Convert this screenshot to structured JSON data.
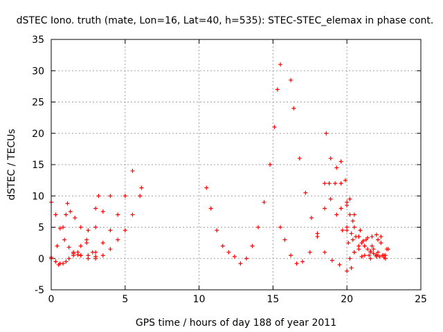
{
  "chart_data": {
    "type": "scatter",
    "title": "dSTEC Iono. truth (mate, Lon=16, Lat=40, h=535): STEC-STEC_elemax in phase cont.",
    "xlabel": "GPS time / hours of day 188 of year 2011",
    "ylabel": "dSTEC  / TECUs",
    "xlim": [
      0,
      25
    ],
    "ylim": [
      -5,
      35
    ],
    "xticks": [
      0,
      5,
      10,
      15,
      20,
      25
    ],
    "yticks": [
      -5,
      0,
      5,
      10,
      15,
      20,
      25,
      30,
      35
    ],
    "grid": true,
    "marker": "+",
    "color": "#ff0000",
    "series": [
      {
        "x": [
          0.0,
          0.3,
          0.6,
          0.9,
          1.2,
          1.5,
          1.8,
          2.0
        ],
        "y": [
          9.0,
          7.0,
          4.8,
          3.0,
          1.8,
          1.0,
          0.6,
          0.5
        ]
      },
      {
        "x": [
          0.0,
          0.4,
          0.8,
          1.0,
          1.1,
          1.3,
          1.6,
          2.0,
          2.4,
          2.8,
          3.0
        ],
        "y": [
          0.2,
          2.0,
          5.0,
          7.0,
          8.8,
          7.5,
          6.5,
          5.0,
          3.0,
          1.0,
          0.3
        ]
      },
      {
        "x": [
          0.0,
          0.3,
          0.6,
          1.0,
          1.5,
          2.0,
          2.5,
          3.0,
          3.2
        ],
        "y": [
          0.0,
          -0.5,
          -0.8,
          -0.5,
          0.5,
          2.0,
          4.5,
          8.0,
          10.0
        ]
      },
      {
        "x": [
          0.5,
          0.8,
          1.2,
          1.8,
          2.4,
          3.0,
          3.5,
          4.0
        ],
        "y": [
          -1.0,
          -0.8,
          0.0,
          1.0,
          2.5,
          5.0,
          7.5,
          10.0
        ]
      },
      {
        "x": [
          1.5,
          2.0,
          2.5,
          3.0,
          3.5,
          4.0,
          4.5,
          5.0,
          5.5
        ],
        "y": [
          0.8,
          0.5,
          0.5,
          1.0,
          2.5,
          4.5,
          7.0,
          10.0,
          14.0
        ]
      },
      {
        "x": [
          2.5,
          3.0,
          3.5,
          4.0,
          4.5,
          5.0,
          5.5,
          6.0,
          6.1
        ],
        "y": [
          0.0,
          0.0,
          0.5,
          1.5,
          3.0,
          4.5,
          7.0,
          10.0,
          11.3
        ]
      },
      {
        "x": [
          10.5,
          10.8,
          11.2,
          11.6,
          12.0,
          12.4,
          12.8,
          13.2,
          13.6,
          14.0,
          14.4,
          14.8,
          15.1,
          15.3,
          15.5
        ],
        "y": [
          11.3,
          8.0,
          4.5,
          2.0,
          1.0,
          0.3,
          -0.8,
          0.0,
          2.0,
          5.0,
          9.0,
          15.0,
          21.0,
          27.0,
          31.0
        ]
      },
      {
        "x": [
          15.5,
          15.8,
          16.2,
          16.6,
          17.0,
          17.5,
          18.0,
          18.5,
          18.8
        ],
        "y": [
          5.0,
          3.0,
          0.5,
          -0.8,
          -0.5,
          1.0,
          4.0,
          8.0,
          12.0
        ]
      },
      {
        "x": [
          16.2,
          16.4,
          16.8,
          17.2,
          17.6,
          18.0,
          18.5,
          19.0,
          19.5,
          20.0,
          20.3
        ],
        "y": [
          28.5,
          24.0,
          16.0,
          10.5,
          6.5,
          3.5,
          1.0,
          -0.3,
          -1.0,
          -2.0,
          -1.5
        ]
      },
      {
        "x": [
          18.6,
          18.9,
          19.2,
          19.6,
          20.0,
          20.4,
          20.8,
          21.2,
          21.6,
          22.0,
          22.3
        ],
        "y": [
          20.0,
          16.0,
          12.0,
          8.0,
          5.0,
          3.0,
          1.5,
          0.5,
          0.0,
          0.5,
          2.5
        ]
      },
      {
        "x": [
          18.5,
          18.9,
          19.3,
          19.7,
          20.1,
          20.5,
          21.0,
          21.5,
          21.8,
          22.1
        ],
        "y": [
          12.0,
          9.5,
          7.0,
          4.5,
          2.5,
          1.0,
          0.3,
          0.5,
          1.5,
          3.0
        ]
      },
      {
        "x": [
          19.3,
          19.6,
          20.0,
          20.4,
          20.8,
          21.2,
          21.6,
          22.0,
          22.4,
          22.7
        ],
        "y": [
          14.5,
          12.0,
          9.0,
          6.0,
          3.5,
          2.0,
          1.0,
          0.3,
          0.5,
          1.5
        ]
      },
      {
        "x": [
          19.6,
          19.9,
          20.2,
          20.5,
          20.9,
          21.3,
          21.7,
          22.1,
          22.5,
          22.8
        ],
        "y": [
          15.5,
          12.5,
          9.5,
          7.0,
          4.5,
          3.0,
          2.0,
          1.0,
          0.5,
          1.5
        ]
      },
      {
        "x": [
          20.2,
          20.5,
          20.8,
          21.1,
          21.4,
          21.7,
          22.0,
          22.3,
          22.6
        ],
        "y": [
          0.0,
          1.0,
          2.0,
          2.8,
          3.3,
          3.5,
          3.8,
          3.5,
          0.5
        ]
      },
      {
        "x": [
          20.0,
          20.3,
          20.6,
          21.0,
          21.4,
          21.8,
          22.2,
          22.6
        ],
        "y": [
          4.5,
          4.0,
          3.5,
          2.5,
          1.5,
          0.8,
          0.3,
          0.0
        ]
      },
      {
        "x": [
          20.0,
          20.2,
          20.5,
          20.8,
          21.2,
          21.6,
          22.0,
          22.5
        ],
        "y": [
          8.5,
          7.0,
          5.0,
          3.5,
          2.0,
          1.2,
          0.6,
          0.2
        ]
      }
    ]
  }
}
